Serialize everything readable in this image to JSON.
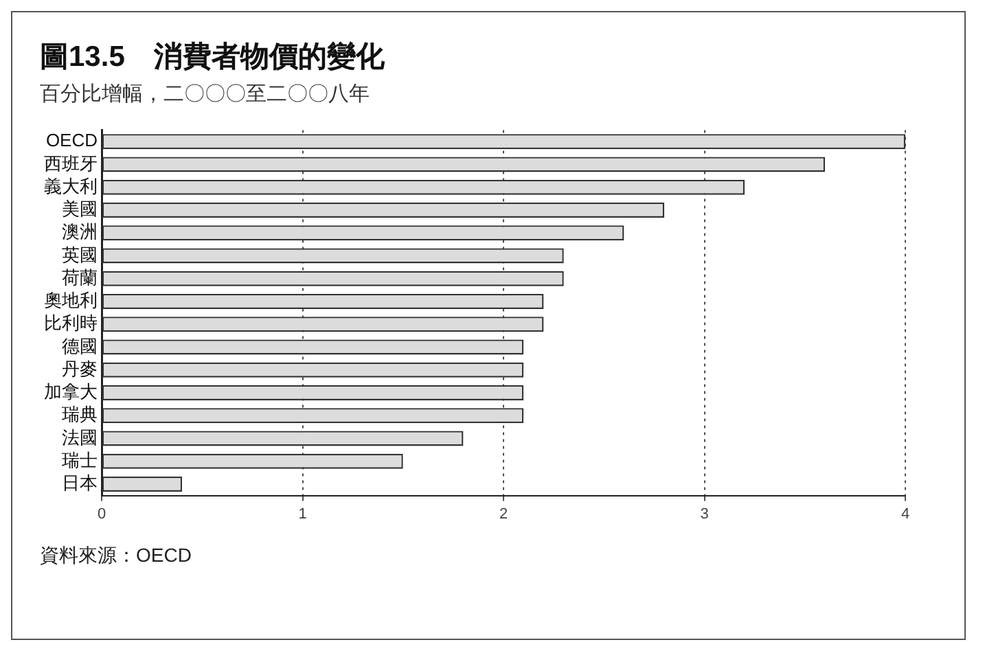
{
  "chart_data": {
    "type": "bar",
    "orientation": "horizontal",
    "title": "圖13.5　消費者物價的變化",
    "subtitle": "百分比增幅，二〇〇〇至二〇〇八年",
    "categories": [
      "OECD",
      "西班牙",
      "義大利",
      "美國",
      "澳洲",
      "英國",
      "荷蘭",
      "奧地利",
      "比利時",
      "德國",
      "丹麥",
      "加拿大",
      "瑞典",
      "法國",
      "瑞士",
      "日本"
    ],
    "values": [
      4.0,
      3.6,
      3.2,
      2.8,
      2.6,
      2.3,
      2.3,
      2.2,
      2.2,
      2.1,
      2.1,
      2.1,
      2.1,
      1.8,
      1.5,
      0.4
    ],
    "color": "#dcdcdc",
    "xlim": [
      0,
      4
    ],
    "xticks": [
      0,
      1,
      2,
      3,
      4
    ],
    "grid": "x",
    "legend": false,
    "annotations": [
      "資料來源：OECD"
    ]
  }
}
